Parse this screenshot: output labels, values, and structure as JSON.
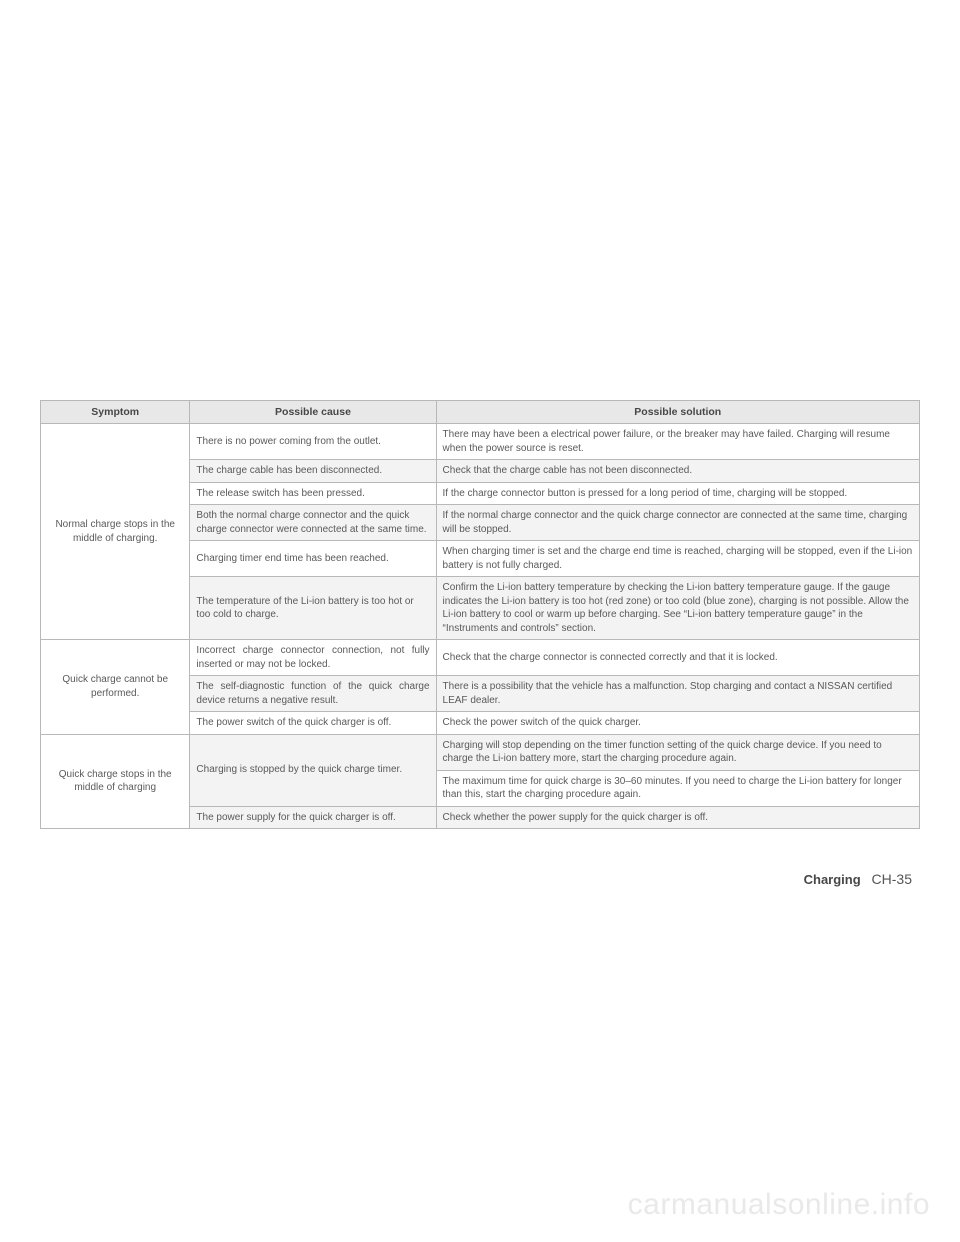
{
  "table": {
    "headers": {
      "symptom": "Symptom",
      "cause": "Possible cause",
      "solution": "Possible solution"
    },
    "rows": [
      {
        "symptom": "Normal charge stops in the middle of charging.",
        "symptom_rowspan": 6,
        "cause": "There is no power coming from the outlet.",
        "solution": "There may have been a electrical power failure, or the breaker may have failed. Charging will resume when the power source is reset.",
        "alt": false
      },
      {
        "cause": "The charge cable has been disconnected.",
        "solution": "Check that the charge cable has not been disconnected.",
        "alt": true
      },
      {
        "cause": "The release switch has been pressed.",
        "solution": "If the charge connector button is pressed for a long period of time, charging will be stopped.",
        "alt": false
      },
      {
        "cause": "Both the normal charge connector and the quick charge connector were connected at the same time.",
        "solution": "If the normal charge connector and the quick charge connector are connected at the same time, charging will be stopped.",
        "alt": true
      },
      {
        "cause": "Charging timer end time has been reached.",
        "solution": "When charging timer is set and the charge end time is reached, charging will be stopped, even if the Li-ion battery is not fully charged.",
        "alt": false
      },
      {
        "cause": "The temperature of the Li-ion battery is too hot or too cold to charge.",
        "solution": "Confirm the Li-ion battery temperature by checking the Li-ion battery temperature gauge. If the gauge indicates the Li-ion battery is too hot (red zone) or too cold (blue zone), charging is not possible. Allow the Li-ion battery to cool or warm up before charging. See “Li-ion battery temperature gauge” in the “Instruments and controls” section.",
        "alt": true
      },
      {
        "symptom": "Quick charge cannot be performed.",
        "symptom_rowspan": 3,
        "cause": "Incorrect charge connector connection, not fully inserted or may not be locked.",
        "solution": "Check that the charge connector is connected correctly and that it is locked.",
        "alt": false,
        "justify": true
      },
      {
        "cause": "The self-diagnostic function of the quick charge device returns a negative result.",
        "solution": "There is a possibility that the vehicle has a malfunction. Stop charging and contact a NISSAN certified LEAF dealer.",
        "alt": true,
        "justify": true
      },
      {
        "cause": "The power switch of the quick charger is off.",
        "solution": "Check the power switch of the quick charger.",
        "alt": false
      },
      {
        "symptom": "Quick charge stops in the middle of charging",
        "symptom_rowspan": 3,
        "cause": "Charging is stopped by the quick charge timer.",
        "cause_rowspan": 2,
        "solution": "Charging will stop depending on the timer function setting of the quick charge device. If you need to charge the Li-ion battery more, start the charging procedure again.",
        "alt": true
      },
      {
        "solution": "The maximum time for quick charge is 30–60 minutes. If you need to charge the Li-ion battery for longer than this, start the charging procedure again.",
        "alt": false
      },
      {
        "cause": "The power supply for the quick charger is off.",
        "solution": "Check whether the power supply for the quick charger is off.",
        "alt": true
      }
    ]
  },
  "footer": {
    "section": "Charging",
    "page": "CH-35"
  },
  "watermark": "carmanualsonline.info"
}
